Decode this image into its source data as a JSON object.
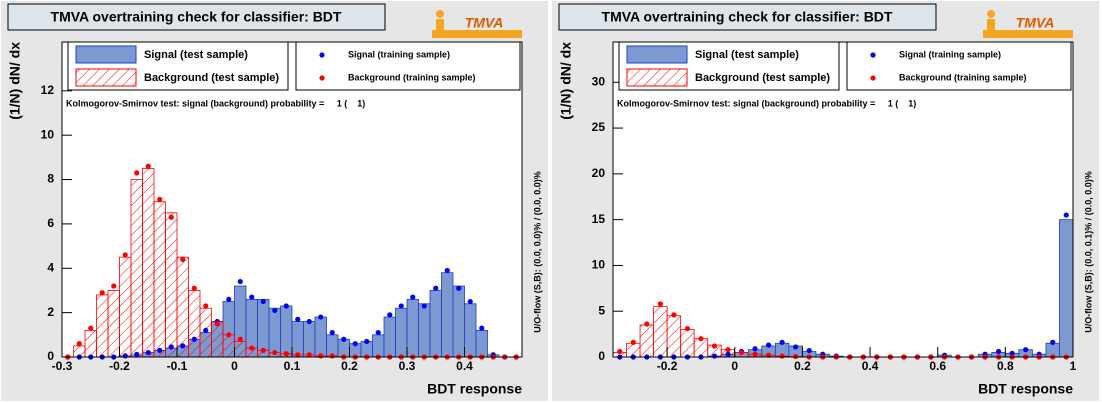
{
  "chart_data": [
    {
      "type": "histogram",
      "title": "TMVA overtraining check for classifier: BDT",
      "logo": "TMVA",
      "xlabel": "BDT response",
      "ylabel": "(1/N) dN/ dx",
      "annotation": "Kolmogorov-Smirnov test: signal (background) probability =     1 (    1)",
      "side_note": "U/O-flow (S,B): (0.0, 0.0)% / (0.0, 0.0)%",
      "xlim": [
        -0.3,
        0.5
      ],
      "ylim": [
        0,
        14.2
      ],
      "xticks": [
        -0.3,
        -0.2,
        -0.1,
        0,
        0.1,
        0.2,
        0.3,
        0.4
      ],
      "yticks": [
        0,
        2,
        4,
        6,
        8,
        10,
        12
      ],
      "bins": [
        -0.3,
        -0.28,
        -0.26,
        -0.24,
        -0.22,
        -0.2,
        -0.18,
        -0.16,
        -0.14,
        -0.12,
        -0.1,
        -0.08,
        -0.06,
        -0.04,
        -0.02,
        0,
        0.02,
        0.04,
        0.06,
        0.08,
        0.1,
        0.12,
        0.14,
        0.16,
        0.18,
        0.2,
        0.22,
        0.24,
        0.26,
        0.28,
        0.3,
        0.32,
        0.34,
        0.36,
        0.38,
        0.4,
        0.42,
        0.44,
        0.46,
        0.48,
        0.5
      ],
      "series": [
        {
          "name": "Signal (test sample)",
          "color": "#7d99d1",
          "style": "filled",
          "values": [
            0,
            0,
            0,
            0,
            0,
            0.05,
            0.1,
            0.2,
            0.3,
            0.4,
            0.5,
            0.8,
            1.1,
            1.6,
            2.5,
            3.2,
            2.6,
            2.6,
            2.2,
            2.3,
            1.6,
            1.6,
            1.8,
            1.0,
            0.8,
            0.6,
            0.7,
            1.0,
            1.8,
            2.2,
            2.6,
            2.4,
            3.0,
            3.8,
            3.2,
            2.4,
            1.2,
            0.1,
            0,
            0
          ]
        },
        {
          "name": "Background (test sample)",
          "color": "#ff0000",
          "style": "hatched",
          "values": [
            0,
            0.5,
            1.2,
            2.8,
            3.0,
            4.5,
            8.0,
            8.5,
            7.0,
            6.5,
            4.5,
            3.0,
            2.2,
            1.6,
            1.0,
            0.7,
            0.4,
            0.3,
            0.2,
            0.15,
            0.1,
            0.1,
            0.05,
            0.05,
            0,
            0,
            0,
            0,
            0,
            0,
            0,
            0,
            0,
            0,
            0,
            0,
            0,
            0,
            0,
            0
          ]
        },
        {
          "name": "Signal (training sample)",
          "color": "#0000ff",
          "style": "points",
          "values": [
            0,
            0,
            0,
            0,
            0,
            0.05,
            0.12,
            0.2,
            0.3,
            0.45,
            0.5,
            0.8,
            1.2,
            1.6,
            2.6,
            3.4,
            2.7,
            2.5,
            2.1,
            2.3,
            1.7,
            1.6,
            1.8,
            1.1,
            0.8,
            0.6,
            0.7,
            1.1,
            1.9,
            2.3,
            2.7,
            2.3,
            3.1,
            3.9,
            3.1,
            2.5,
            1.3,
            0.1,
            0,
            0
          ]
        },
        {
          "name": "Background (training sample)",
          "color": "#ff0000",
          "style": "points",
          "values": [
            0,
            0.6,
            1.3,
            2.9,
            3.2,
            4.6,
            8.3,
            8.6,
            7.1,
            6.3,
            4.4,
            3.1,
            2.3,
            1.5,
            1.0,
            0.8,
            0.4,
            0.3,
            0.2,
            0.15,
            0.1,
            0.1,
            0.05,
            0.05,
            0,
            0,
            0,
            0,
            0,
            0,
            0,
            0,
            0,
            0,
            0,
            0,
            0,
            0,
            0,
            0
          ]
        }
      ]
    },
    {
      "type": "histogram",
      "title": "TMVA overtraining check for classifier: BDT",
      "logo": "TMVA",
      "xlabel": "BDT response",
      "ylabel": "(1/N) dN/ dx",
      "annotation": "Kolmogorov-Smirnov test: signal (background) probability =     1 (    1)",
      "side_note": "U/O-flow (S,B): (0.0, 0.1)% / (0.0, 0.0)%",
      "xlim": [
        -0.36,
        1.0
      ],
      "ylim": [
        0,
        34.4
      ],
      "xticks": [
        -0.2,
        0,
        0.2,
        0.4,
        0.6,
        0.8,
        1
      ],
      "yticks": [
        0,
        5,
        10,
        15,
        20,
        25,
        30
      ],
      "bins": [
        -0.36,
        -0.32,
        -0.28,
        -0.24,
        -0.2,
        -0.16,
        -0.12,
        -0.08,
        -0.04,
        0,
        0.04,
        0.08,
        0.12,
        0.16,
        0.2,
        0.24,
        0.28,
        0.32,
        0.36,
        0.4,
        0.44,
        0.48,
        0.52,
        0.56,
        0.6,
        0.64,
        0.68,
        0.72,
        0.76,
        0.8,
        0.84,
        0.88,
        0.92,
        0.96,
        1.0
      ],
      "series": [
        {
          "name": "Signal (test sample)",
          "color": "#7d99d1",
          "style": "filled",
          "values": [
            0,
            0,
            0,
            0,
            0,
            0,
            0,
            0.1,
            0.3,
            0.5,
            0.8,
            1.2,
            1.5,
            1.2,
            0.6,
            0.3,
            0.1,
            0,
            0,
            0,
            0,
            0,
            0,
            0,
            0.2,
            0,
            0,
            0.3,
            0.5,
            0.4,
            0.8,
            0.3,
            1.5,
            15
          ]
        },
        {
          "name": "Background (test sample)",
          "color": "#ff0000",
          "style": "hatched",
          "values": [
            0.5,
            1.5,
            3.5,
            5.5,
            4.5,
            3.0,
            2.0,
            1.3,
            0.8,
            0.5,
            0.3,
            0.2,
            0.1,
            0.05,
            0,
            0,
            0,
            0,
            0,
            0,
            0,
            0,
            0,
            0,
            0,
            0,
            0,
            0,
            0,
            0,
            0,
            0,
            0,
            0
          ]
        },
        {
          "name": "Signal (training sample)",
          "color": "#0000ff",
          "style": "points",
          "values": [
            0,
            0,
            0,
            0,
            0,
            0,
            0,
            0.1,
            0.3,
            0.6,
            0.9,
            1.3,
            1.6,
            1.1,
            0.7,
            0.3,
            0.1,
            0,
            0,
            0,
            0,
            0,
            0,
            0,
            0.2,
            0,
            0,
            0.3,
            0.6,
            0.4,
            0.8,
            0.3,
            1.6,
            15.5
          ]
        },
        {
          "name": "Background (training sample)",
          "color": "#ff0000",
          "style": "points",
          "values": [
            0.6,
            1.6,
            3.6,
            5.8,
            4.6,
            3.1,
            2.0,
            1.2,
            0.8,
            0.5,
            0.3,
            0.2,
            0.1,
            0.05,
            0,
            0,
            0,
            0,
            0,
            0,
            0,
            0,
            0,
            0,
            0,
            0,
            0,
            0,
            0,
            0,
            0,
            0,
            0,
            0
          ]
        }
      ]
    }
  ]
}
